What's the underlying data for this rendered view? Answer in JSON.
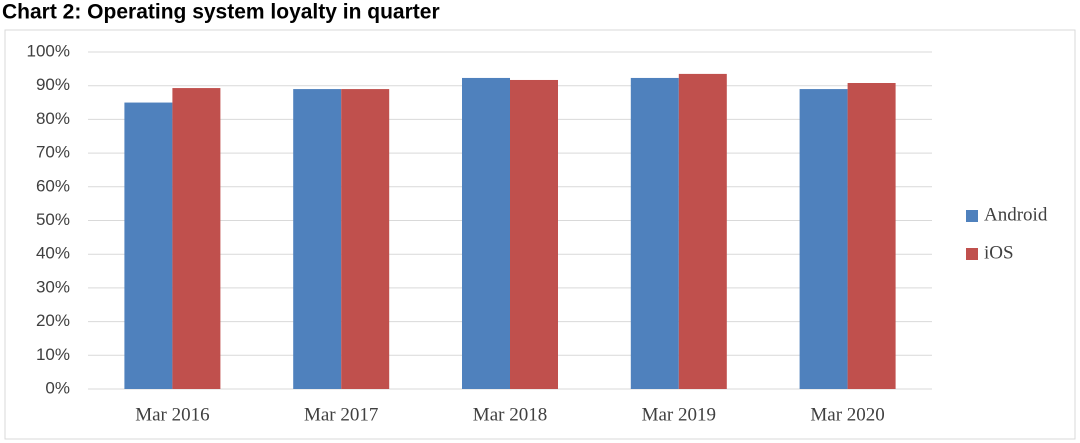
{
  "chart_data": {
    "type": "bar",
    "title": "Chart 2: Operating system loyalty in quarter",
    "categories": [
      "Mar 2016",
      "Mar 2017",
      "Mar 2018",
      "Mar 2019",
      "Mar 2020"
    ],
    "series": [
      {
        "name": "Android",
        "color": "#4f81bd",
        "values": [
          85,
          89,
          92.3,
          92.3,
          89
        ]
      },
      {
        "name": "iOS",
        "color": "#c0504d",
        "values": [
          89.3,
          89,
          91.7,
          93.5,
          90.8
        ]
      }
    ],
    "ylim": [
      0,
      100
    ],
    "yticks": [
      {
        "value": 0,
        "label": "0%"
      },
      {
        "value": 10,
        "label": "10%"
      },
      {
        "value": 20,
        "label": "20%"
      },
      {
        "value": 30,
        "label": "30%"
      },
      {
        "value": 40,
        "label": "40%"
      },
      {
        "value": 50,
        "label": "50%"
      },
      {
        "value": 60,
        "label": "60%"
      },
      {
        "value": 70,
        "label": "70%"
      },
      {
        "value": 80,
        "label": "80%"
      },
      {
        "value": 90,
        "label": "90%"
      },
      {
        "value": 100,
        "label": "100%"
      }
    ],
    "grid": true,
    "legend": "right"
  }
}
